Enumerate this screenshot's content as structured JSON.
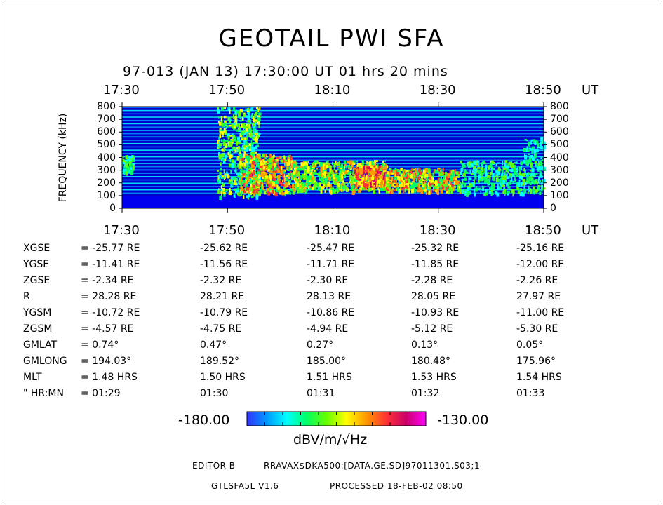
{
  "chart_data": {
    "type": "heatmap",
    "title": "GEOTAIL  PWI  SFA",
    "subtitle": "97-013 (JAN 13) 17:30:00  UT     01 hrs   20 mins",
    "ylabel": "FREQUENCY (kHz)",
    "x_unit": "UT",
    "x_ticks": [
      "17:30",
      "17:50",
      "18:10",
      "18:30",
      "18:50"
    ],
    "y_ticks": [
      "0",
      "100",
      "200",
      "300",
      "400",
      "500",
      "600",
      "700",
      "800"
    ],
    "xlim": [
      "17:30",
      "18:50"
    ],
    "ylim": [
      0,
      800
    ],
    "colorbar": {
      "min_label": "-180.00",
      "max_label": "-130.00",
      "unit": "dBV/m/√Hz",
      "min": -180,
      "max": -130
    },
    "colors": {
      "background": "#0000cc",
      "scale": [
        "#3333ff",
        "#0099ff",
        "#00ffff",
        "#00ff66",
        "#66ff00",
        "#ffff00",
        "#ff9900",
        "#ff3333",
        "#cc0066",
        "#ff00ff"
      ]
    }
  },
  "ephemeris": {
    "rows": [
      {
        "label": "XGSE",
        "values": [
          "= -25.77 RE",
          "-25.62 RE",
          "-25.47 RE",
          "-25.32 RE",
          "-25.16 RE"
        ]
      },
      {
        "label": "YGSE",
        "values": [
          "= -11.41 RE",
          "-11.56 RE",
          "-11.71 RE",
          "-11.85 RE",
          "-12.00 RE"
        ]
      },
      {
        "label": "ZGSE",
        "values": [
          "=  -2.34 RE",
          "-2.32 RE",
          "-2.30 RE",
          "-2.28 RE",
          "-2.26 RE"
        ]
      },
      {
        "label": "R",
        "values": [
          "=  28.28 RE",
          "28.21 RE",
          "28.13 RE",
          "28.05 RE",
          "27.97 RE"
        ]
      },
      {
        "label": "YGSM",
        "values": [
          "= -10.72 RE",
          "-10.79 RE",
          "-10.86 RE",
          "-10.93 RE",
          "-11.00 RE"
        ]
      },
      {
        "label": "ZGSM",
        "values": [
          "=  -4.57 RE",
          "-4.75 RE",
          "-4.94 RE",
          "-5.12 RE",
          "-5.30 RE"
        ]
      },
      {
        "label": "GMLAT",
        "values": [
          "=   0.74°",
          "0.47°",
          "0.27°",
          "0.13°",
          "0.05°"
        ]
      },
      {
        "label": "GMLONG",
        "values": [
          "= 194.03°",
          "189.52°",
          "185.00°",
          "180.48°",
          "175.96°"
        ]
      },
      {
        "label": "MLT",
        "values": [
          "=    1.48 HRS",
          "1.50 HRS",
          "1.51 HRS",
          "1.53 HRS",
          "1.54 HRS"
        ]
      },
      {
        "label": "\" HR:MN",
        "values": [
          "=  01:29",
          "01:30",
          "01:31",
          "01:32",
          "01:33"
        ]
      }
    ]
  },
  "footer": {
    "editor": "EDITOR B",
    "path": "RRAVAX$DKA500:[DATA.GE.SD]97011301.S03;1",
    "program": "GTLSFA5L V1.6",
    "processed": "PROCESSED 18-FEB-02   08:50"
  }
}
